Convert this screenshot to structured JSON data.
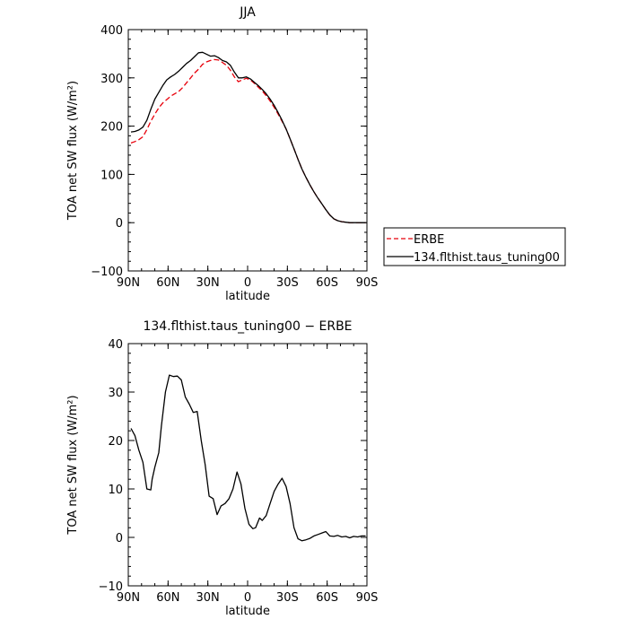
{
  "chart_data": [
    {
      "type": "line",
      "title": "JJA",
      "xlabel": "latitude",
      "ylabel": "TOA net SW flux (W/m²)",
      "xlim": [
        90,
        -90
      ],
      "ylim": [
        -100,
        400
      ],
      "x_ticks": [
        90,
        60,
        30,
        0,
        -30,
        -60,
        -90
      ],
      "x_tick_labels": [
        "90N",
        "60N",
        "30N",
        "0",
        "30S",
        "60S",
        "90S"
      ],
      "y_ticks": [
        -100,
        0,
        100,
        200,
        300,
        400
      ],
      "y_tick_labels": [
        "−100",
        "0",
        "100",
        "200",
        "300",
        "400"
      ],
      "legend_position": "right",
      "series": [
        {
          "name": "ERBE",
          "color": "#e8000b",
          "dash": "dashed",
          "x": [
            88,
            85,
            82,
            79,
            76,
            73,
            70,
            67,
            64,
            61,
            58,
            55,
            52,
            49,
            46,
            43,
            40,
            37,
            34,
            31,
            28,
            25,
            22,
            19,
            16,
            13,
            10,
            7,
            4,
            1,
            -2,
            -5,
            -8,
            -11,
            -14,
            -17,
            -20,
            -23,
            -26,
            -29,
            -32,
            -35,
            -38,
            -41,
            -44,
            -47,
            -50,
            -53,
            -56,
            -59,
            -62,
            -65,
            -68,
            -71,
            -74,
            -77,
            -80,
            -83,
            -86,
            -89
          ],
          "values": [
            165,
            168,
            172,
            178,
            193,
            210,
            225,
            238,
            248,
            255,
            262,
            267,
            272,
            280,
            290,
            300,
            310,
            318,
            328,
            333,
            336,
            338,
            337,
            332,
            326,
            316,
            302,
            292,
            296,
            299,
            296,
            289,
            281,
            273,
            263,
            252,
            239,
            225,
            210,
            194,
            174,
            153,
            131,
            111,
            94,
            78,
            64,
            51,
            39,
            27,
            16,
            8,
            4,
            2,
            1,
            0,
            0,
            0,
            0,
            0
          ]
        },
        {
          "name": "134.flthist.taus_tuning00",
          "color": "#000000",
          "dash": "solid",
          "x": [
            88,
            85,
            82,
            79,
            76,
            73,
            70,
            67,
            64,
            61,
            58,
            55,
            52,
            49,
            46,
            43,
            40,
            37,
            34,
            31,
            28,
            25,
            22,
            19,
            16,
            13,
            10,
            7,
            4,
            1,
            -2,
            -5,
            -8,
            -11,
            -14,
            -17,
            -20,
            -23,
            -26,
            -29,
            -32,
            -35,
            -38,
            -41,
            -44,
            -47,
            -50,
            -53,
            -56,
            -59,
            -62,
            -65,
            -68,
            -71,
            -74,
            -77,
            -80,
            -83,
            -86,
            -89
          ],
          "values": [
            188,
            189,
            192,
            198,
            212,
            235,
            256,
            270,
            284,
            296,
            302,
            307,
            314,
            322,
            330,
            336,
            344,
            352,
            353,
            349,
            345,
            346,
            342,
            336,
            333,
            326,
            312,
            300,
            300,
            302,
            298,
            291,
            284,
            276,
            267,
            256,
            243,
            228,
            212,
            194,
            174,
            153,
            131,
            111,
            94,
            78,
            64,
            51,
            39,
            27,
            16,
            8,
            4,
            2,
            1,
            0,
            0,
            0,
            0,
            0
          ]
        }
      ]
    },
    {
      "type": "line",
      "title": "134.flthist.taus_tuning00 − ERBE",
      "xlabel": "latitude",
      "ylabel": "TOA net SW flux (W/m²)",
      "xlim": [
        90,
        -90
      ],
      "ylim": [
        -10,
        40
      ],
      "x_ticks": [
        90,
        60,
        30,
        0,
        -30,
        -60,
        -90
      ],
      "x_tick_labels": [
        "90N",
        "60N",
        "30N",
        "0",
        "30S",
        "60S",
        "90S"
      ],
      "y_ticks": [
        -10,
        0,
        10,
        20,
        30,
        40
      ],
      "y_tick_labels": [
        "−10",
        "0",
        "10",
        "20",
        "30",
        "40"
      ],
      "series": [
        {
          "color": "#000000",
          "dash": "solid",
          "x": [
            88,
            85,
            82,
            79,
            76,
            73,
            72,
            70,
            67,
            65,
            62,
            59,
            56,
            53,
            50,
            47,
            44,
            41,
            38,
            35,
            32,
            29,
            26,
            23,
            20,
            17,
            14,
            11,
            8,
            5,
            2,
            -1,
            -4,
            -6,
            -9,
            -11,
            -14,
            -17,
            -20,
            -23,
            -26,
            -29,
            -32,
            -35,
            -38,
            -41,
            -44,
            -47,
            -50,
            -53,
            -56,
            -59,
            -62,
            -65,
            -68,
            -71,
            -74,
            -77,
            -80,
            -83,
            -86,
            -89
          ],
          "values": [
            22.5,
            21,
            18,
            15.5,
            10,
            9.8,
            12,
            14.5,
            17.5,
            23,
            30,
            33.5,
            33.2,
            33.3,
            32.5,
            29,
            27.5,
            25.8,
            26,
            20,
            15,
            8.5,
            8,
            4.7,
            6.5,
            7,
            8,
            10,
            13.5,
            11,
            6,
            2.7,
            1.8,
            2,
            4,
            3.5,
            4.5,
            7,
            9.5,
            11,
            12.2,
            10.5,
            7,
            2,
            -0.3,
            -0.7,
            -0.5,
            -0.2,
            0.3,
            0.6,
            0.9,
            1.2,
            0.3,
            0.2,
            0.4,
            0.1,
            0.2,
            -0.1,
            0.2,
            0.1,
            0.3,
            0.3
          ]
        }
      ]
    }
  ]
}
